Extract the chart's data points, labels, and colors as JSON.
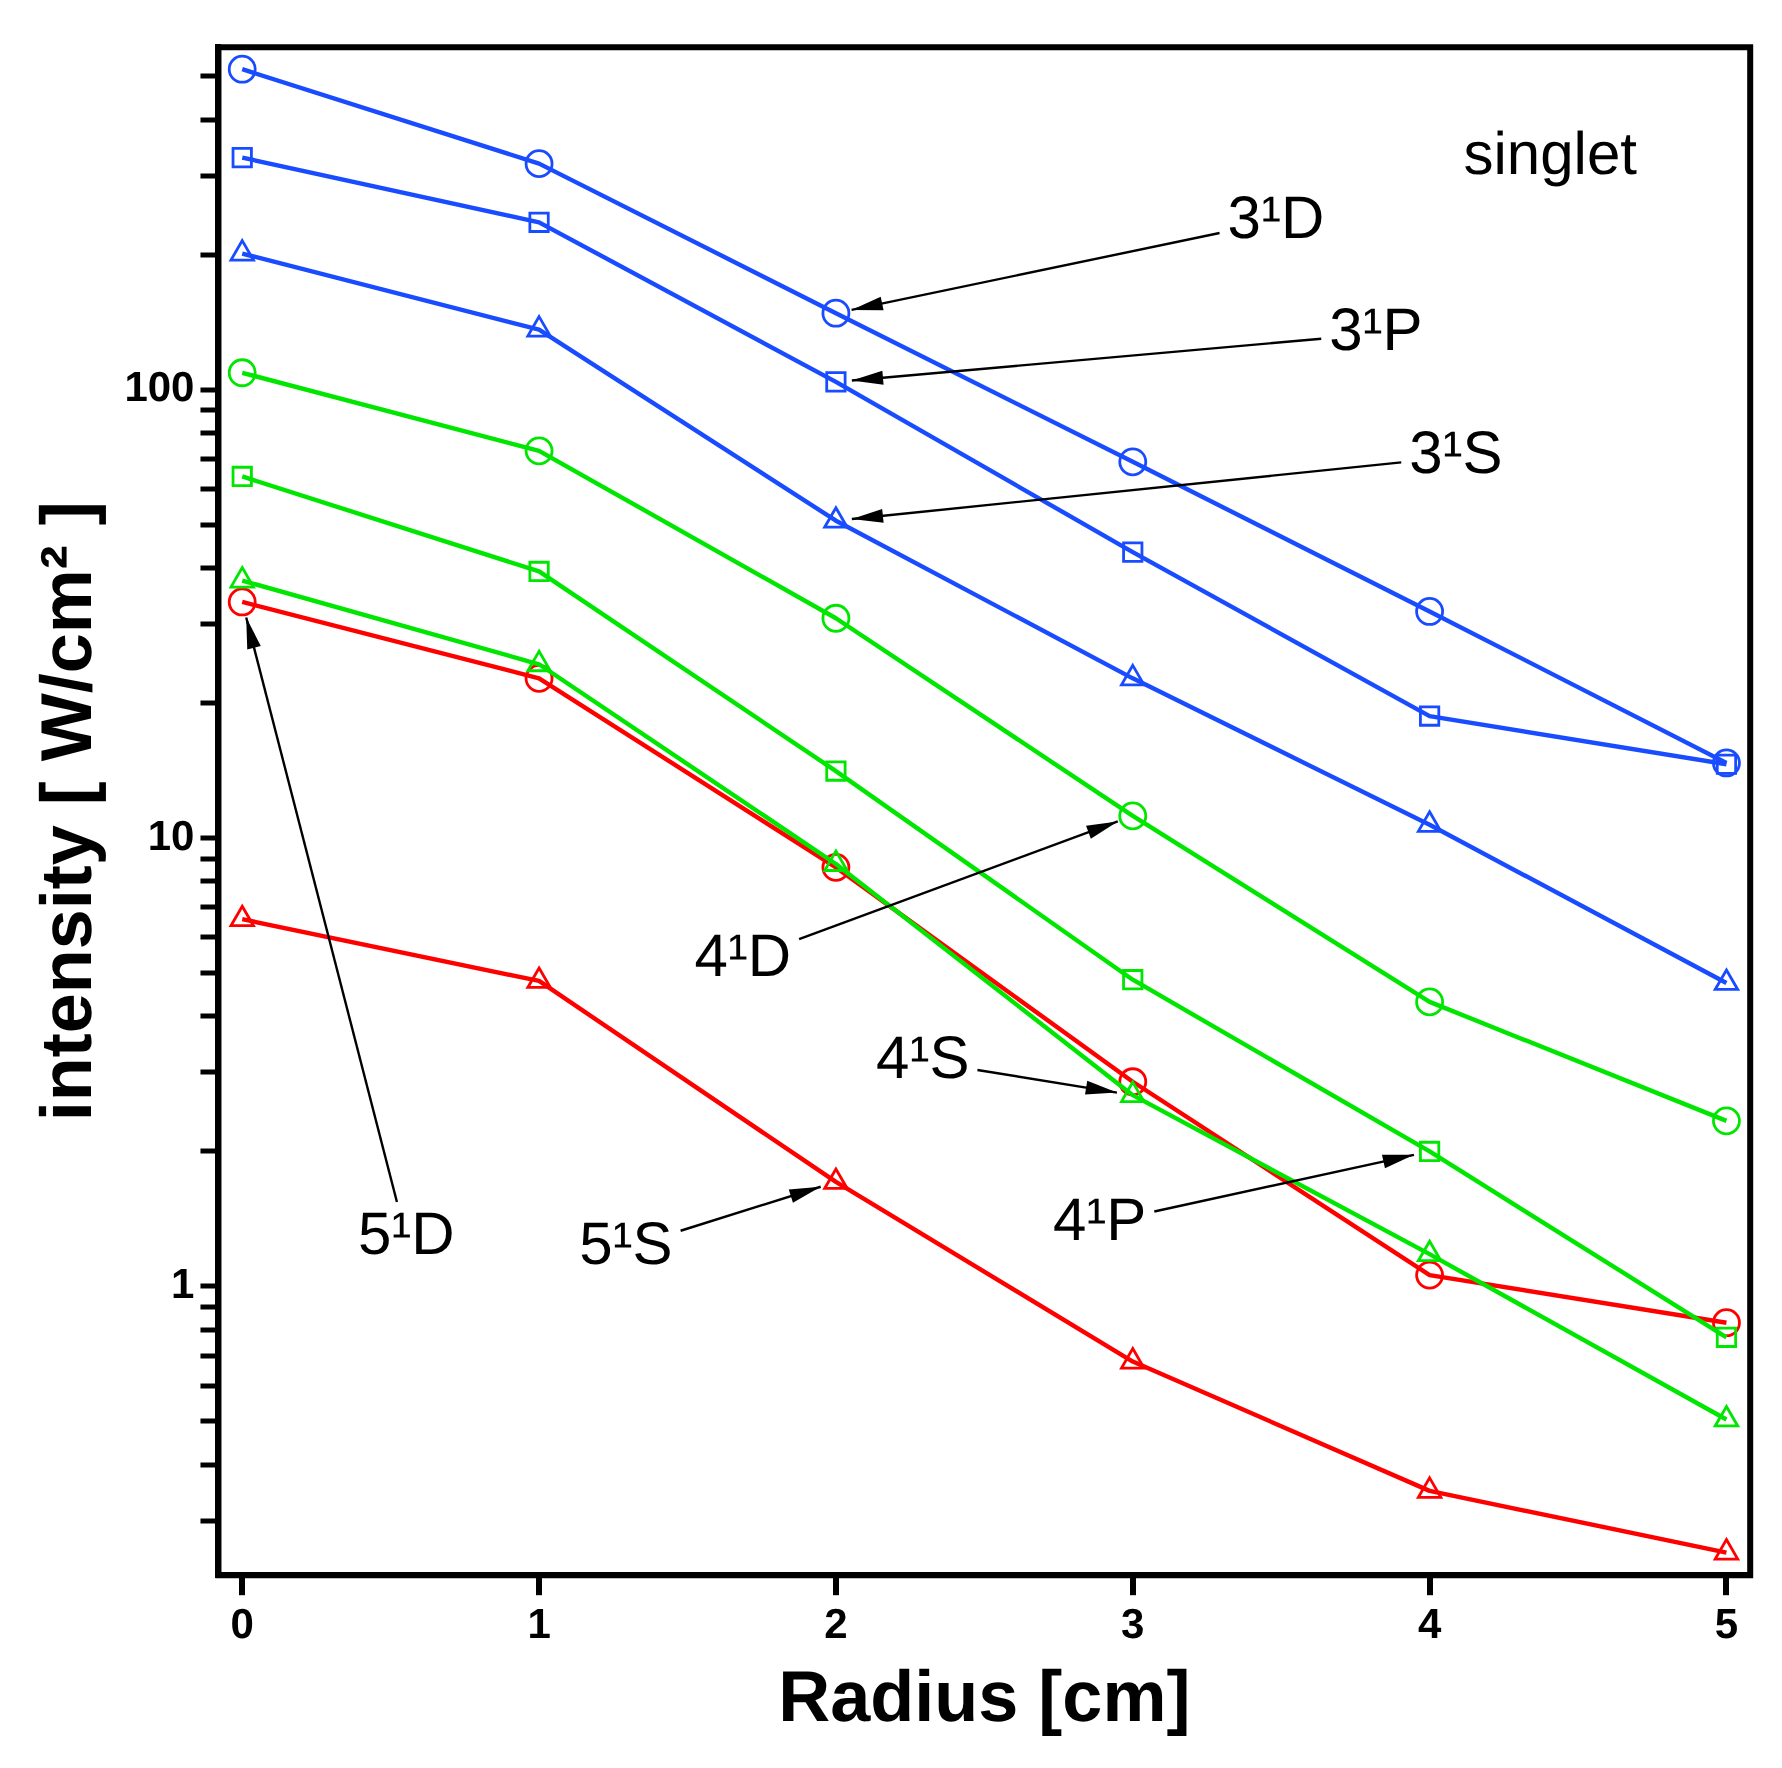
{
  "chart_data": {
    "type": "line",
    "xlabel": "Radius [cm]",
    "ylabel": "intensity [ W/cm² ]",
    "log": "y",
    "grid": false,
    "legend": false,
    "line_style": "solid",
    "xlim": [
      -0.08,
      5.08
    ],
    "xticks": [
      0,
      1,
      2,
      3,
      4,
      5
    ],
    "ylim": [
      0.227,
      580
    ],
    "yticks": [
      {
        "value": 0.3,
        "label": null
      },
      {
        "value": 0.4,
        "label": null
      },
      {
        "value": 0.5,
        "label": null
      },
      {
        "value": 0.6,
        "label": null
      },
      {
        "value": 0.7,
        "label": null
      },
      {
        "value": 0.8,
        "label": null
      },
      {
        "value": 0.9,
        "label": null
      },
      1,
      {
        "value": 2,
        "label": null
      },
      {
        "value": 3,
        "label": null
      },
      {
        "value": 4,
        "label": null
      },
      {
        "value": 5,
        "label": null
      },
      {
        "value": 6,
        "label": null
      },
      {
        "value": 7,
        "label": null
      },
      {
        "value": 8,
        "label": null
      },
      {
        "value": 9,
        "label": null
      },
      10,
      {
        "value": 20,
        "label": null
      },
      {
        "value": 30,
        "label": null
      },
      {
        "value": 40,
        "label": null
      },
      {
        "value": 50,
        "label": null
      },
      {
        "value": 60,
        "label": null
      },
      {
        "value": 70,
        "label": null
      },
      {
        "value": 80,
        "label": null
      },
      {
        "value": 90,
        "label": null
      },
      100,
      {
        "value": 200,
        "label": null
      },
      {
        "value": 300,
        "label": null
      },
      {
        "value": 400,
        "label": null
      },
      {
        "value": 500,
        "label": null
      }
    ],
    "x": [
      0,
      1,
      2,
      3,
      4,
      5
    ],
    "series": [
      {
        "color": "#1a4cff",
        "marker": "circle",
        "values": [
          518,
          319,
          148,
          69,
          32,
          14.7
        ]
      },
      {
        "color": "#1a4cff",
        "marker": "square",
        "values": [
          329,
          236,
          104,
          43.4,
          18.7,
          14.6
        ]
      },
      {
        "color": "#1a4cff",
        "marker": "triangle",
        "values": [
          201,
          136,
          51,
          22.7,
          10.7,
          4.75
        ]
      },
      {
        "color": "#00e600",
        "marker": "circle",
        "values": [
          109,
          73,
          30.9,
          11.2,
          4.31,
          2.34
        ]
      },
      {
        "color": "#00e600",
        "marker": "square",
        "values": [
          64,
          39.3,
          14.1,
          4.83,
          2.0,
          0.77
        ]
      },
      {
        "color": "#00e600",
        "marker": "triangle",
        "values": [
          37.5,
          24.4,
          8.75,
          2.67,
          1.18,
          0.505
        ]
      },
      {
        "color": "#ff0000",
        "marker": "circle",
        "values": [
          33.6,
          22.7,
          8.6,
          2.86,
          1.06,
          0.83
        ]
      },
      {
        "color": "#ff0000",
        "marker": "triangle",
        "values": [
          6.59,
          4.8,
          1.71,
          0.68,
          0.35,
          0.255
        ]
      }
    ],
    "annotations": [
      "singlet",
      {
        "text": "3¹D",
        "x": 2,
        "y": 148
      },
      {
        "text": "3¹P",
        "x": 2,
        "y": 104
      },
      {
        "text": "3¹S",
        "x": 2,
        "y": 51
      },
      {
        "text": "4¹D",
        "x": 3,
        "y": 11.2
      },
      {
        "text": "4¹S",
        "x": 3,
        "y": 2.67
      },
      {
        "text": "4¹P",
        "x": 4,
        "y": 2.0
      },
      {
        "text": "5¹D",
        "x": 0,
        "y": 33.6
      },
      {
        "text": "5¹S",
        "x": 2,
        "y": 1.71
      }
    ]
  }
}
